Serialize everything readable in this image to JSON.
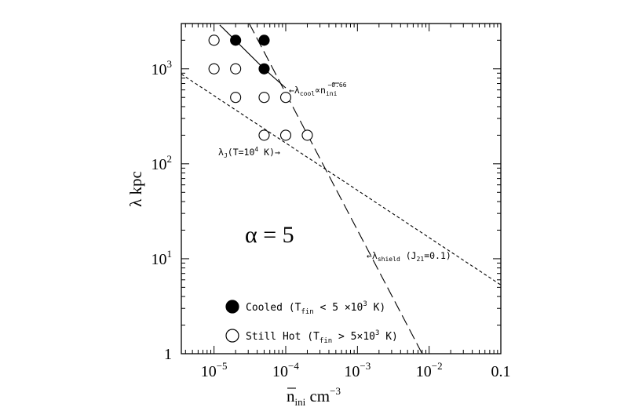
{
  "chart_data": {
    "type": "scatter",
    "x_scale": "log",
    "y_scale": "log",
    "xlim": [
      3.5e-06,
      0.1
    ],
    "ylim": [
      1,
      3000
    ],
    "x_ticks": [
      {
        "value": 1e-05,
        "base": "10",
        "exp": "−5"
      },
      {
        "value": 0.0001,
        "base": "10",
        "exp": "−4"
      },
      {
        "value": 0.001,
        "base": "10",
        "exp": "−3"
      },
      {
        "value": 0.01,
        "base": "10",
        "exp": "−2"
      },
      {
        "value": 0.1,
        "base": "0.1",
        "exp": ""
      }
    ],
    "y_ticks": [
      {
        "value": 1,
        "base": "1",
        "exp": ""
      },
      {
        "value": 10,
        "base": "10",
        "exp": "1"
      },
      {
        "value": 100,
        "base": "10",
        "exp": "2"
      },
      {
        "value": 1000,
        "base": "10",
        "exp": "3"
      }
    ],
    "xlabel": {
      "main": "n",
      "sub": "ini",
      "unit": "cm",
      "exp": "−3"
    },
    "ylabel": "λ  kpc",
    "annotation_alpha": "α = 5",
    "series": [
      {
        "name": "Cooled (Tfin < 5 ×10³ K)",
        "marker": "filled-circle",
        "points": [
          [
            2e-05,
            2000
          ],
          [
            5e-05,
            2000
          ],
          [
            5e-05,
            1000
          ]
        ]
      },
      {
        "name": "Still Hot (Tfin > 5×10³ K)",
        "marker": "open-circle",
        "points": [
          [
            1e-05,
            2000
          ],
          [
            1e-05,
            1000
          ],
          [
            2e-05,
            1000
          ],
          [
            2e-05,
            500
          ],
          [
            5e-05,
            500
          ],
          [
            0.0001,
            500
          ],
          [
            5e-05,
            200
          ],
          [
            0.0001,
            200
          ],
          [
            0.0002,
            200
          ]
        ]
      }
    ],
    "lines": [
      {
        "name": "λcool",
        "style": "solid",
        "points": [
          [
            1.2e-05,
            2900
          ],
          [
            5e-05,
            1000
          ],
          [
            0.0001,
            630
          ]
        ]
      },
      {
        "name": "λJ (T=10⁴ K)",
        "style": "short-dash",
        "points": [
          [
            3.5e-06,
            880
          ],
          [
            0.1,
            5.3
          ]
        ]
      },
      {
        "name": "λshield (J21=0.1)",
        "style": "long-dash",
        "points": [
          [
            3.1e-05,
            3000
          ],
          [
            0.008,
            1
          ]
        ]
      }
    ],
    "line_labels": {
      "cool": {
        "main": "←λ",
        "sub": "cool",
        "mid": "∝n",
        "sub2": "ini",
        "exp": "−0.66"
      },
      "jeans": {
        "main": "λ",
        "sub": "J",
        "rest": "(T=10",
        "exp": "4",
        "tail": " K)→"
      },
      "shield": {
        "main": "←λ",
        "sub": "shield",
        "rest": " (J",
        "sub2": "21",
        "tail": "=0.1)"
      }
    },
    "legend": [
      {
        "marker": "filled",
        "text": "Cooled (T",
        "sub": "fin",
        "rest": " < 5 ×10",
        "exp": "3",
        "tail": " K)"
      },
      {
        "marker": "open",
        "text": "Still Hot (T",
        "sub": "fin",
        "rest": " > 5×10",
        "exp": "3",
        "tail": " K)"
      }
    ],
    "legend_position": "bottom-left",
    "grid": false
  }
}
